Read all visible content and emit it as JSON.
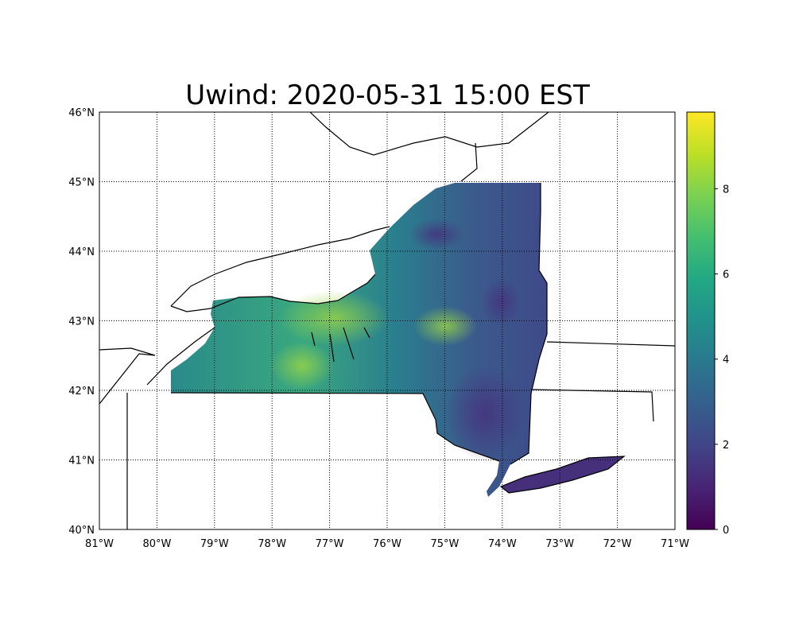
{
  "title": "Uwind: 2020-05-31 15:00 EST",
  "chart_data": {
    "type": "heatmap",
    "title": "Uwind: 2020-05-31 15:00 EST",
    "projection": "lat/lon map of New York State",
    "xlim": [
      -81,
      -71
    ],
    "ylim": [
      40,
      46
    ],
    "x_ticks": [
      "81°W",
      "80°W",
      "79°W",
      "78°W",
      "77°W",
      "76°W",
      "75°W",
      "74°W",
      "73°W",
      "72°W",
      "71°W"
    ],
    "y_ticks": [
      "40°N",
      "41°N",
      "42°N",
      "43°N",
      "44°N",
      "45°N",
      "46°N"
    ],
    "grid": "dotted",
    "colorbar": {
      "colormap": "viridis",
      "range": [
        0,
        9.8
      ],
      "ticks": [
        "0",
        "2",
        "4",
        "6",
        "8"
      ],
      "position": "right"
    },
    "value_summary": {
      "western_ny": "4-7, peaks ~8 near Lake Ontario shore",
      "central_ny": "5-7",
      "eastern_ny": "2-4",
      "long_island": "0-2"
    }
  },
  "colors": {
    "low": "#440154",
    "mid": "#21918c",
    "high": "#fde725"
  }
}
